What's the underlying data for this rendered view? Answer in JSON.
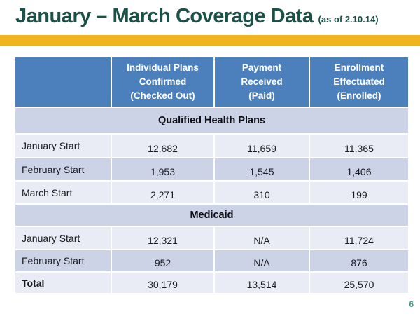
{
  "header": {
    "title": "January – March Coverage Data",
    "subtitle": "(as of 2.10.14)"
  },
  "footer": {
    "page_number": "6"
  },
  "colors": {
    "title_teal": "#1a5148",
    "accent_gold": "#f0b41f",
    "table_header_blue": "#4c80bc",
    "band_lavender": "#ccd3e6",
    "band_light": "#e9ecf5",
    "page_number_teal": "#3f9b82"
  },
  "table": {
    "column_headers": [
      "Individual Plans\nConfirmed\n(Checked Out)",
      "Payment\nReceived\n(Paid)",
      "Enrollment\nEffectuated\n(Enrolled)"
    ],
    "sections": [
      {
        "name": "Qualified Health Plans",
        "rows": [
          {
            "label": "January Start",
            "values": [
              "12,682",
              "11,659",
              "11,365"
            ]
          },
          {
            "label": "February Start",
            "values": [
              "1,953",
              "1,545",
              "1,406"
            ]
          },
          {
            "label": "March Start",
            "values": [
              "2,271",
              "310",
              "199"
            ]
          }
        ]
      },
      {
        "name": "Medicaid",
        "rows": [
          {
            "label": "January Start",
            "values": [
              "12,321",
              "N/A",
              "11,724"
            ]
          },
          {
            "label": "February Start",
            "values": [
              "952",
              "N/A",
              "876"
            ]
          }
        ]
      }
    ],
    "total_row": {
      "label": "Total",
      "values": [
        "30,179",
        "13,514",
        "25,570"
      ]
    }
  }
}
